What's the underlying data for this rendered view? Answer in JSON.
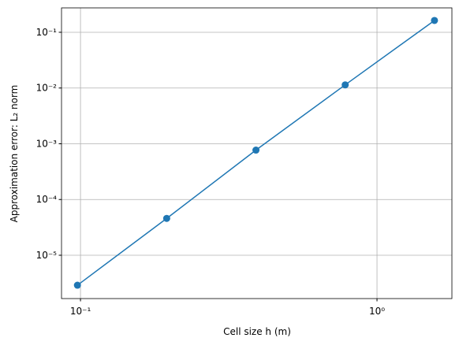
{
  "chart_data": {
    "type": "line",
    "xlabel": "Cell size h (m)",
    "ylabel": "Approximation error: L₂ norm",
    "x": [
      0.09765625,
      0.1953125,
      0.390625,
      0.78125,
      1.5625
    ],
    "series": [
      {
        "color": "#1f77b4",
        "values": [
          2.9e-06,
          4.58e-05,
          0.00077,
          0.0114,
          0.163
        ]
      }
    ],
    "xscale": "log",
    "yscale": "log",
    "xlim": [
      0.0863,
      1.789
    ],
    "ylim": [
      1.67e-06,
      0.274
    ],
    "xticks": [
      {
        "value": 0.1,
        "label": "10⁻¹"
      },
      {
        "value": 1,
        "label": "10⁰"
      }
    ],
    "yticks": [
      {
        "value": 1e-05,
        "label": "10⁻⁵"
      },
      {
        "value": 0.0001,
        "label": "10⁻⁴"
      },
      {
        "value": 0.001,
        "label": "10⁻³"
      },
      {
        "value": 0.01,
        "label": "10⁻²"
      },
      {
        "value": 0.1,
        "label": "10⁻¹"
      }
    ],
    "grid": true,
    "markers": true
  }
}
